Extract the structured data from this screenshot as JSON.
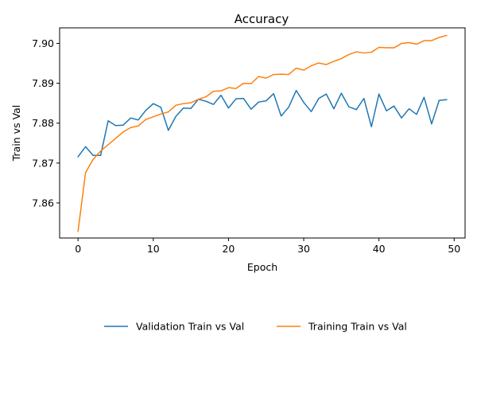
{
  "chart_data": {
    "type": "line",
    "title": "Accuracy",
    "xlabel": "Epoch",
    "ylabel": "Train vs Val",
    "xlim": [
      -2.45,
      51.45
    ],
    "ylim": [
      7.8512,
      7.9039
    ],
    "xticks": [
      0,
      10,
      20,
      30,
      40,
      50
    ],
    "yticks": [
      7.86,
      7.87,
      7.88,
      7.89,
      7.9
    ],
    "ytick_labels": [
      "7.86",
      "7.87",
      "7.88",
      "7.89",
      "7.90"
    ],
    "grid": false,
    "legend_position": "bottom-center",
    "x": [
      0,
      1,
      2,
      3,
      4,
      5,
      6,
      7,
      8,
      9,
      10,
      11,
      12,
      13,
      14,
      15,
      16,
      17,
      18,
      19,
      20,
      21,
      22,
      23,
      24,
      25,
      26,
      27,
      28,
      29,
      30,
      31,
      32,
      33,
      34,
      35,
      36,
      37,
      38,
      39,
      40,
      41,
      42,
      43,
      44,
      45,
      46,
      47,
      48,
      49
    ],
    "series": [
      {
        "name": "Validation Train vs Val",
        "color": "#1f77b4",
        "values": [
          7.8716,
          7.8741,
          7.8719,
          7.8719,
          7.8806,
          7.8794,
          7.8795,
          7.8813,
          7.8808,
          7.8832,
          7.8849,
          7.884,
          7.8782,
          7.8817,
          7.8838,
          7.8837,
          7.886,
          7.8855,
          7.8847,
          7.887,
          7.8838,
          7.8861,
          7.8862,
          7.8835,
          7.8853,
          7.8856,
          7.8874,
          7.8818,
          7.884,
          7.8882,
          7.8852,
          7.8829,
          7.8862,
          7.8873,
          7.8836,
          7.8875,
          7.8841,
          7.8834,
          7.8862,
          7.8791,
          7.8873,
          7.8831,
          7.8843,
          7.8813,
          7.8836,
          7.8822,
          7.8865,
          7.8798,
          7.8857,
          7.8859
        ]
      },
      {
        "name": "Training Train vs Val",
        "color": "#ff7f0e",
        "values": [
          7.8529,
          7.8676,
          7.8709,
          7.873,
          7.8746,
          7.8762,
          7.8778,
          7.8789,
          7.8793,
          7.8809,
          7.8816,
          7.8823,
          7.8828,
          7.8845,
          7.8849,
          7.8851,
          7.886,
          7.8866,
          7.888,
          7.8881,
          7.8889,
          7.8887,
          7.89,
          7.8899,
          7.8917,
          7.8913,
          7.8922,
          7.8923,
          7.8922,
          7.8938,
          7.8933,
          7.8944,
          7.8951,
          7.8947,
          7.8955,
          7.8962,
          7.8972,
          7.8979,
          7.8976,
          7.8978,
          7.899,
          7.8989,
          7.8989,
          7.9,
          7.9002,
          7.8998,
          7.9007,
          7.9007,
          7.9015,
          7.902
        ]
      }
    ]
  }
}
